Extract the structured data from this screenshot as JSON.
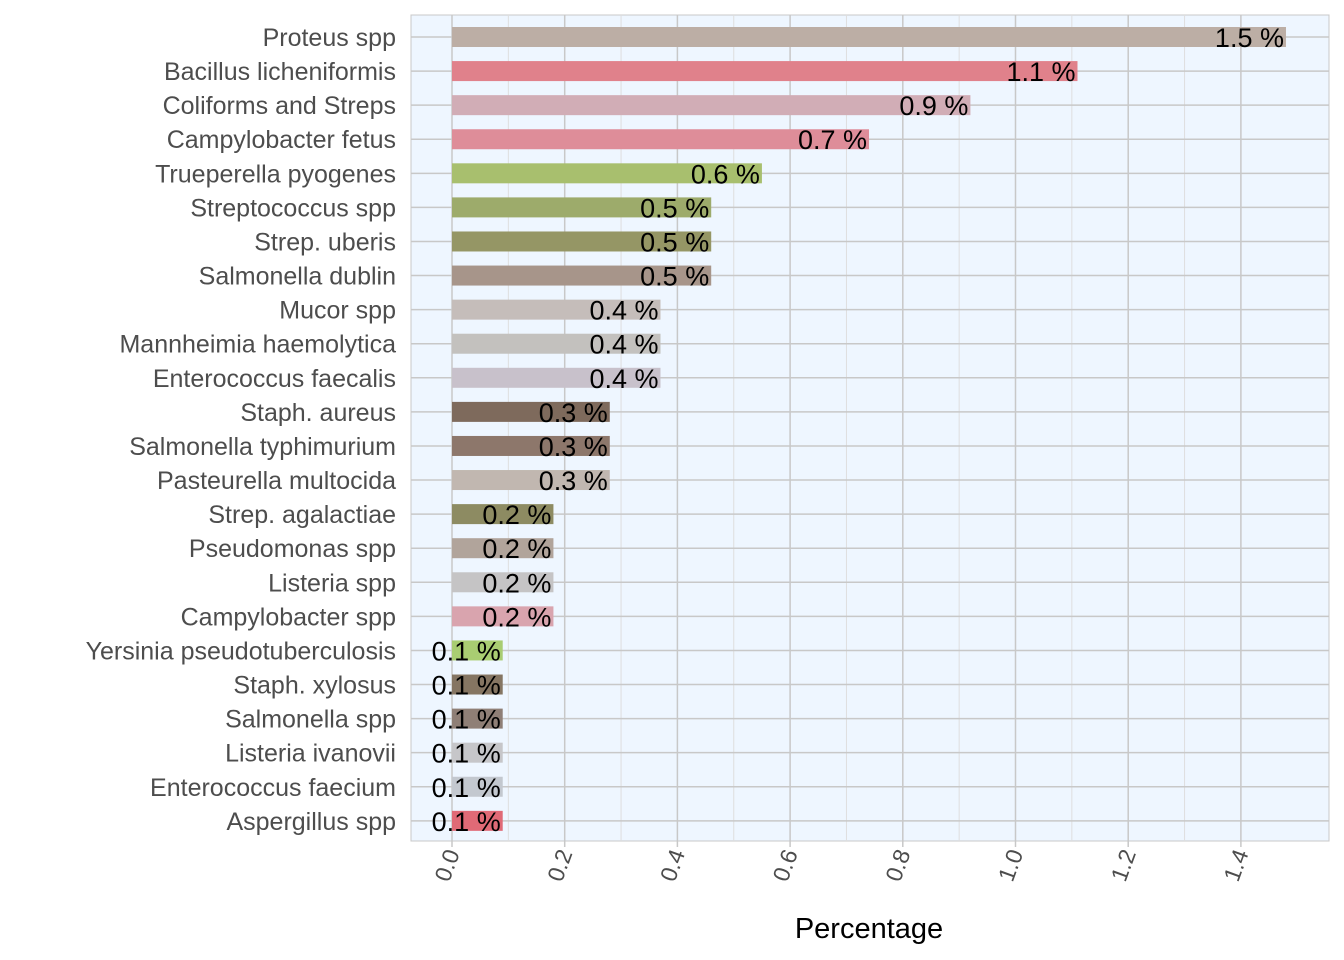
{
  "chart_data": {
    "type": "bar",
    "orientation": "horizontal",
    "title": "",
    "xlabel": "Percentage",
    "ylabel": "",
    "xlim": [
      0,
      1.5
    ],
    "x_ticks": [
      "0.0",
      "0.2",
      "0.4",
      "0.6",
      "0.8",
      "1.0",
      "1.2",
      "1.4"
    ],
    "tick_values": [
      0,
      0.2,
      0.4,
      0.6,
      0.8,
      1.0,
      1.2,
      1.4
    ],
    "grid": true,
    "legend": "none",
    "panel_background": "#eef6ff",
    "bars": [
      {
        "category": "Proteus spp",
        "value": 1.48,
        "label": "1.5 %",
        "color": "#bcaea5"
      },
      {
        "category": "Bacillus licheniformis",
        "value": 1.11,
        "label": "1.1 %",
        "color": "#e0818b"
      },
      {
        "category": "Coliforms and Streps",
        "value": 0.92,
        "label": "0.9 %",
        "color": "#d1adb6"
      },
      {
        "category": "Campylobacter fetus",
        "value": 0.74,
        "label": "0.7 %",
        "color": "#de8d99"
      },
      {
        "category": "Trueperella pyogenes",
        "value": 0.55,
        "label": "0.6 %",
        "color": "#a8bf6e"
      },
      {
        "category": "Streptococcus spp",
        "value": 0.46,
        "label": "0.5 %",
        "color": "#9dab6b"
      },
      {
        "category": "Strep. uberis",
        "value": 0.46,
        "label": "0.5 %",
        "color": "#959665"
      },
      {
        "category": "Salmonella dublin",
        "value": 0.46,
        "label": "0.5 %",
        "color": "#a7958a"
      },
      {
        "category": "Mucor spp",
        "value": 0.37,
        "label": "0.4 %",
        "color": "#c5bdba"
      },
      {
        "category": "Mannheimia haemolytica",
        "value": 0.37,
        "label": "0.4 %",
        "color": "#c3c1be"
      },
      {
        "category": "Enterococcus faecalis",
        "value": 0.37,
        "label": "0.4 %",
        "color": "#c8c1cb"
      },
      {
        "category": "Staph. aureus",
        "value": 0.28,
        "label": "0.3 %",
        "color": "#7e6a5c"
      },
      {
        "category": "Salmonella typhimurium",
        "value": 0.28,
        "label": "0.3 %",
        "color": "#8d776b"
      },
      {
        "category": "Pasteurella multocida",
        "value": 0.28,
        "label": "0.3 %",
        "color": "#c1b7b0"
      },
      {
        "category": "Strep. agalactiae",
        "value": 0.18,
        "label": "0.2 %",
        "color": "#8d8b62"
      },
      {
        "category": "Pseudomonas spp",
        "value": 0.18,
        "label": "0.2 %",
        "color": "#b1a49b"
      },
      {
        "category": "Listeria spp",
        "value": 0.18,
        "label": "0.2 %",
        "color": "#c5c4c5"
      },
      {
        "category": "Campylobacter spp",
        "value": 0.18,
        "label": "0.2 %",
        "color": "#d9a4ae"
      },
      {
        "category": "Yersinia pseudotuberculosis",
        "value": 0.09,
        "label": "0.1 %",
        "color": "#a9cd72"
      },
      {
        "category": "Staph. xylosus",
        "value": 0.09,
        "label": "0.1 %",
        "color": "#857562"
      },
      {
        "category": "Salmonella spp",
        "value": 0.09,
        "label": "0.1 %",
        "color": "#8f7f76"
      },
      {
        "category": "Listeria ivanovii",
        "value": 0.09,
        "label": "0.1 %",
        "color": "#c6c6c9"
      },
      {
        "category": "Enterococcus faecium",
        "value": 0.09,
        "label": "0.1 %",
        "color": "#c3c8cf"
      },
      {
        "category": "Aspergillus spp",
        "value": 0.09,
        "label": "0.1 %",
        "color": "#e06a76"
      }
    ]
  }
}
